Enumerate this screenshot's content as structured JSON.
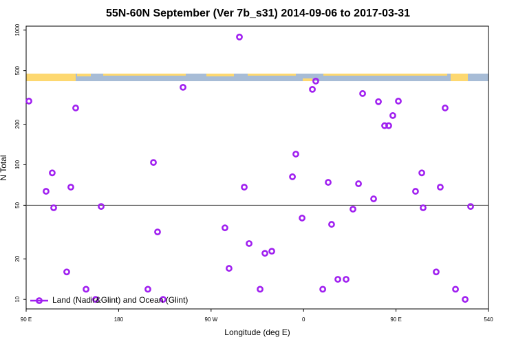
{
  "chart_data": {
    "type": "scatter",
    "title": "55N-60N September (Ver 7b_s31)   2014-09-06 to 2017-03-31",
    "x_label": "Longitude (deg E)",
    "y_label": "N Total",
    "log_y": true,
    "reference_line": 50,
    "xlim": [
      90,
      540
    ],
    "xticks": [
      {
        "value": 90,
        "label": "90 E"
      },
      180,
      {
        "value": 270,
        "label": "90 W"
      },
      {
        "value": 360,
        "label": "0"
      },
      {
        "value": 450,
        "label": "90 E"
      },
      540
    ],
    "ylim": [
      8.5,
      1070
    ],
    "yticks": [
      10,
      20,
      50,
      100,
      200,
      500,
      1000
    ],
    "legend_position": "lower-left",
    "series": [
      {
        "name": "Land (Nadir&Glint) and Ocean (Glint)",
        "color": "#a020f0",
        "x": [
          92.7,
          109.4,
          115.4,
          116.8,
          129.5,
          133.5,
          138.2,
          148.3,
          157.6,
          163,
          208.5,
          213.9,
          217.9,
          223.3,
          242.7,
          283.5,
          287.5,
          297.6,
          302.3,
          307,
          317.7,
          322.4,
          329.1,
          349.2,
          352.5,
          358.6,
          368.6,
          371.9,
          378.7,
          384,
          387.3,
          393.4,
          401.4,
          408.1,
          413.5,
          417.5,
          428.2,
          432.9,
          438.9,
          442.9,
          446.9,
          452.3,
          469,
          475.1,
          476.4,
          489.1,
          493.1,
          497.8,
          507.9,
          517.3,
          522.6
        ],
        "values": [
          297,
          63.5,
          87,
          47.9,
          16,
          68.2,
          264,
          11.9,
          10,
          49,
          11.9,
          104,
          31.7,
          10,
          376,
          34,
          17,
          889,
          68.2,
          26,
          11.9,
          22,
          22.8,
          81.4,
          120,
          40.2,
          363,
          418,
          11.9,
          74,
          36.1,
          14.1,
          14.1,
          46.8,
          72.3,
          338,
          55.8,
          294,
          195,
          195,
          232,
          297,
          63.5,
          87,
          47.9,
          16,
          68.2,
          264,
          11.9,
          10,
          49
        ]
      }
    ]
  }
}
